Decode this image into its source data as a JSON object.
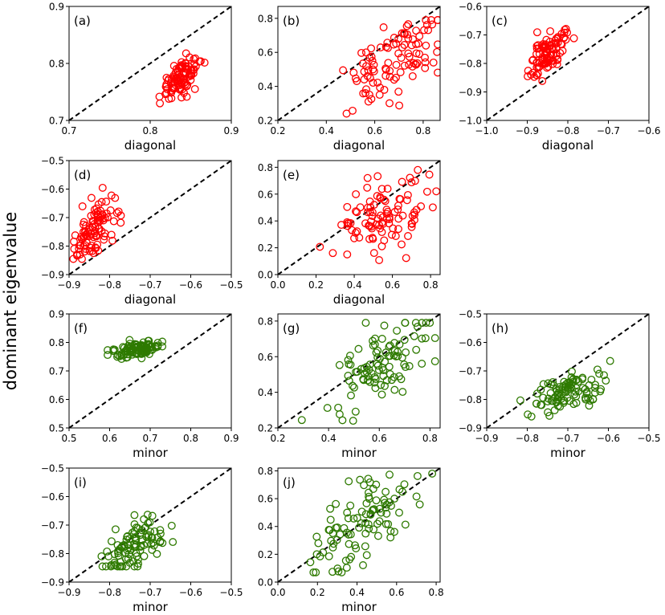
{
  "figure": {
    "shared_ylabel": "dominant eigenvalue",
    "colors": {
      "red_series": "#ff0000",
      "green_series": "#2e7a00",
      "reference": "#000000"
    }
  },
  "chart_data": [
    {
      "type": "scatter",
      "panel_label": "(a)",
      "xlabel": "diagonal",
      "marker_color": "#ff0000",
      "xlim": [
        0.7,
        0.9
      ],
      "ylim": [
        0.7,
        0.9
      ],
      "xticks": [
        "0.7",
        "0.8",
        "0.9"
      ],
      "yticks": [
        "0.7",
        "0.8",
        "0.9"
      ],
      "reference_line": "y = x (dashed)",
      "grid": false,
      "point_count": 100,
      "cluster": {
        "x_center": 0.838,
        "y_center": 0.776,
        "x_spread": 0.013,
        "y_spread": 0.018,
        "x_min": 0.81,
        "x_max": 0.867,
        "y_min": 0.73,
        "y_max": 0.833
      }
    },
    {
      "type": "scatter",
      "panel_label": "(b)",
      "xlabel": "diagonal",
      "marker_color": "#ff0000",
      "xlim": [
        0.2,
        0.87
      ],
      "ylim": [
        0.2,
        0.87
      ],
      "xticks": [
        "0.2",
        "0.4",
        "0.6",
        "0.8"
      ],
      "yticks": [
        "0.2",
        "0.4",
        "0.6",
        "0.8"
      ],
      "reference_line": "y = x (dashed)",
      "grid": false,
      "point_count": 100,
      "cluster": {
        "x_center": 0.7,
        "y_center": 0.56,
        "x_spread": 0.1,
        "y_spread": 0.13,
        "x_min": 0.36,
        "x_max": 0.86,
        "y_min": 0.24,
        "y_max": 0.79
      }
    },
    {
      "type": "scatter",
      "panel_label": "(c)",
      "xlabel": "diagonal",
      "marker_color": "#ff0000",
      "xlim": [
        -1.0,
        -0.6
      ],
      "ylim": [
        -1.0,
        -0.6
      ],
      "xticks": [
        "−1.0",
        "−0.9",
        "−0.8",
        "−0.7",
        "−0.6"
      ],
      "yticks": [
        "−1.0",
        "−0.9",
        "−0.8",
        "−0.7",
        "−0.6"
      ],
      "reference_line": "y = x (dashed)",
      "grid": false,
      "point_count": 100,
      "cluster": {
        "x_center": -0.855,
        "y_center": -0.775,
        "x_spread": 0.025,
        "y_spread": 0.04,
        "x_min": -0.915,
        "x_max": -0.785,
        "y_min": -0.865,
        "y_max": -0.645
      }
    },
    {
      "type": "scatter",
      "panel_label": "(d)",
      "xlabel": "diagonal",
      "marker_color": "#ff0000",
      "xlim": [
        -0.9,
        -0.5
      ],
      "ylim": [
        -0.9,
        -0.5
      ],
      "xticks": [
        "−0.9",
        "−0.8",
        "−0.7",
        "−0.6",
        "−0.5"
      ],
      "yticks": [
        "−0.9",
        "−0.8",
        "−0.7",
        "−0.6",
        "−0.5"
      ],
      "reference_line": "y = x (dashed)",
      "grid": false,
      "point_count": 100,
      "cluster": {
        "x_center": -0.835,
        "y_center": -0.745,
        "x_spread": 0.03,
        "y_spread": 0.06,
        "x_min": -0.89,
        "x_max": -0.73,
        "y_min": -0.845,
        "y_max": -0.535
      }
    },
    {
      "type": "scatter",
      "panel_label": "(e)",
      "xlabel": "diagonal",
      "marker_color": "#ff0000",
      "xlim": [
        0.0,
        0.85
      ],
      "ylim": [
        0.0,
        0.85
      ],
      "xticks": [
        "0.0",
        "0.2",
        "0.4",
        "0.6",
        "0.8"
      ],
      "yticks": [
        "0.0",
        "0.2",
        "0.4",
        "0.6",
        "0.8"
      ],
      "reference_line": "y = x (dashed)",
      "grid": false,
      "point_count": 100,
      "cluster": {
        "x_center": 0.56,
        "y_center": 0.45,
        "x_spread": 0.14,
        "y_spread": 0.18,
        "x_min": 0.22,
        "x_max": 0.83,
        "y_min": 0.06,
        "y_max": 0.78
      }
    },
    {
      "type": "scatter",
      "panel_label": "(f)",
      "xlabel": "minor",
      "marker_color": "#2e7a00",
      "xlim": [
        0.5,
        0.9
      ],
      "ylim": [
        0.5,
        0.9
      ],
      "xticks": [
        "0.5",
        "0.6",
        "0.7",
        "0.8",
        "0.9"
      ],
      "yticks": [
        "0.5",
        "0.6",
        "0.7",
        "0.8",
        "0.9"
      ],
      "reference_line": "y = x (dashed)",
      "grid": false,
      "point_count": 100,
      "cluster": {
        "x_center": 0.665,
        "y_center": 0.775,
        "x_spread": 0.03,
        "y_spread": 0.015,
        "x_min": 0.595,
        "x_max": 0.73,
        "y_min": 0.73,
        "y_max": 0.83
      }
    },
    {
      "type": "scatter",
      "panel_label": "(g)",
      "xlabel": "minor",
      "marker_color": "#2e7a00",
      "xlim": [
        0.2,
        0.84
      ],
      "ylim": [
        0.2,
        0.84
      ],
      "xticks": [
        "0.2",
        "0.4",
        "0.6",
        "0.8"
      ],
      "yticks": [
        "0.2",
        "0.4",
        "0.6",
        "0.8"
      ],
      "reference_line": "y = x (dashed)",
      "grid": false,
      "point_count": 100,
      "cluster": {
        "x_center": 0.61,
        "y_center": 0.56,
        "x_spread": 0.1,
        "y_spread": 0.14,
        "x_min": 0.29,
        "x_max": 0.82,
        "y_min": 0.24,
        "y_max": 0.79
      }
    },
    {
      "type": "scatter",
      "panel_label": "(h)",
      "xlabel": "minor",
      "marker_color": "#2e7a00",
      "xlim": [
        -0.9,
        -0.5
      ],
      "ylim": [
        -0.9,
        -0.5
      ],
      "xticks": [
        "−0.9",
        "−0.8",
        "−0.7",
        "−0.6",
        "−0.5"
      ],
      "yticks": [
        "−0.9",
        "−0.8",
        "−0.7",
        "−0.6",
        "−0.5"
      ],
      "reference_line": "y = x (dashed)",
      "grid": false,
      "point_count": 100,
      "cluster": {
        "x_center": -0.695,
        "y_center": -0.775,
        "x_spread": 0.05,
        "y_spread": 0.035,
        "x_min": -0.82,
        "x_max": -0.53,
        "y_min": -0.86,
        "y_max": -0.63
      }
    },
    {
      "type": "scatter",
      "panel_label": "(i)",
      "xlabel": "minor",
      "marker_color": "#2e7a00",
      "xlim": [
        -0.9,
        -0.5
      ],
      "ylim": [
        -0.9,
        -0.5
      ],
      "xticks": [
        "−0.9",
        "−0.8",
        "−0.7",
        "−0.6",
        "−0.5"
      ],
      "yticks": [
        "−0.9",
        "−0.8",
        "−0.7",
        "−0.6",
        "−0.5"
      ],
      "reference_line": "y = x (dashed)",
      "grid": false,
      "point_count": 100,
      "cluster": {
        "x_center": -0.74,
        "y_center": -0.765,
        "x_spread": 0.035,
        "y_spread": 0.05,
        "x_min": -0.82,
        "x_max": -0.63,
        "y_min": -0.845,
        "y_max": -0.54
      }
    },
    {
      "type": "scatter",
      "panel_label": "(j)",
      "xlabel": "minor",
      "marker_color": "#2e7a00",
      "xlim": [
        0.0,
        0.82
      ],
      "ylim": [
        0.0,
        0.82
      ],
      "xticks": [
        "0.0",
        "0.2",
        "0.4",
        "0.6",
        "0.8"
      ],
      "yticks": [
        "0.0",
        "0.2",
        "0.4",
        "0.6",
        "0.8"
      ],
      "reference_line": "y = x (dashed)",
      "grid": false,
      "point_count": 100,
      "cluster": {
        "x_center": 0.42,
        "y_center": 0.4,
        "x_spread": 0.14,
        "y_spread": 0.17,
        "x_min": 0.13,
        "x_max": 0.78,
        "y_min": 0.07,
        "y_max": 0.78
      }
    }
  ]
}
